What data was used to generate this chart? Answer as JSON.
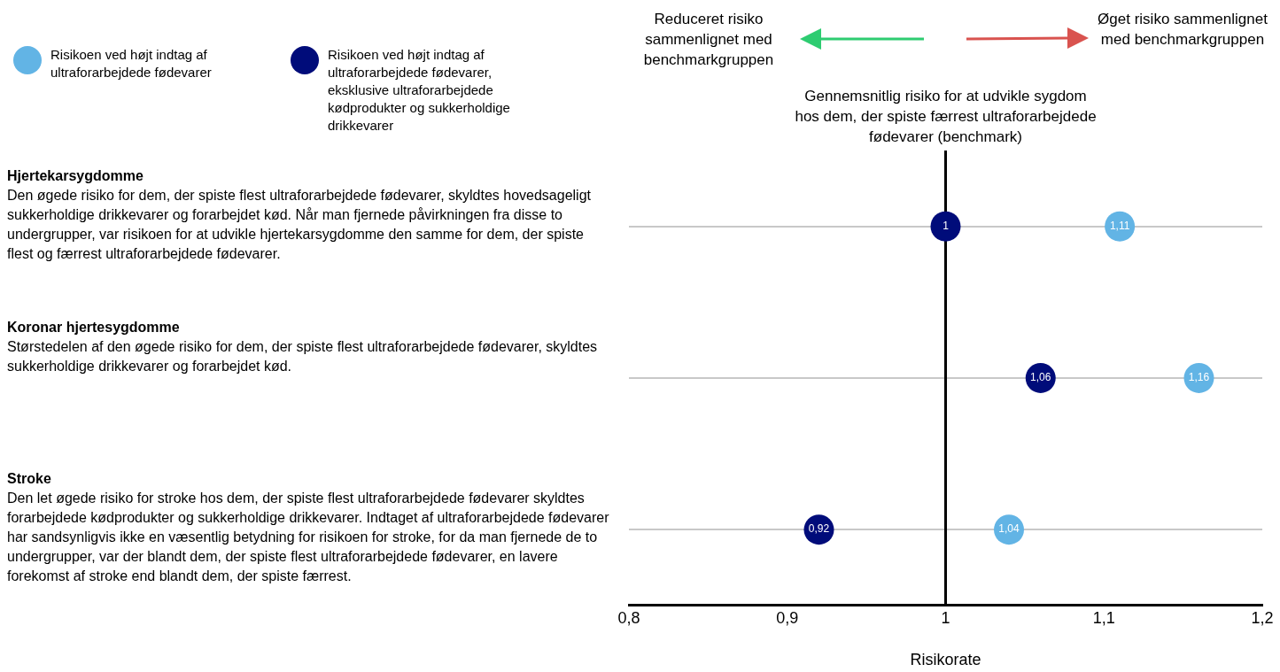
{
  "chart_data": {
    "type": "scatter",
    "orientation": "horizontal",
    "categories": [
      null,
      null,
      null
    ],
    "series": [
      {
        "name": "Risikoen ved højt indtag af ultraforarbejdede fødevarer",
        "color": "#62b4e5",
        "values": [
          1.11,
          1.16,
          1.04
        ],
        "value_labels": [
          "1,11",
          "1,16",
          "1,04"
        ]
      },
      {
        "name": "Risikoen ved højt indtag af ultraforarbejdede fødevarer, eksklusive ultraforarbejdede kødprodukter og sukkerholdige drikkevarer",
        "color": "#000c7a",
        "values": [
          1,
          1.06,
          0.92
        ],
        "value_labels": [
          "1",
          "1,06",
          "0,92"
        ]
      }
    ],
    "xlim": [
      0.8,
      1.2
    ],
    "xticks": [
      {
        "value": 0.8,
        "label": "0,8"
      },
      {
        "value": 0.9,
        "label": "0,9"
      },
      1,
      {
        "value": 1.1,
        "label": "1,1"
      },
      {
        "value": 1.2,
        "label": "1,2"
      }
    ],
    "xlabel": "Risikorate",
    "tick_labels": "x",
    "grid": "y",
    "legend": "top left",
    "marker": "circle",
    "ref_lines": [
      {
        "axis": "x",
        "value": 1,
        "label": "Gennemsnitlig risiko for at udvikle sygdom hos dem, der spiste færrest ultraforarbejdede fødevarer (benchmark)",
        "color": "#000000"
      }
    ],
    "annotations": [
      "Reduceret risiko sammenlignet med benchmarkgruppen",
      "Øget risiko sammenlignet med benchmarkgruppen",
      "Hjertekarsygdomme",
      "Den øgede risiko for dem, der spiste flest ultraforarbejdede fødevarer, skyldtes hovedsageligt sukkerholdige drikkevarer og forarbejdet kød. Når man fjernede påvirkningen fra disse to undergrupper, var risikoen for at udvikle hjertekarsygdomme den samme for dem, der spiste flest og færrest ultraforarbejdede fødevarer.",
      "Koronar hjertesygdomme",
      "Størstedelen af den øgede risiko for dem, der spiste flest ultraforarbejdede fødevarer, skyldtes sukkerholdige drikkevarer og forarbejdet kød.",
      "Stroke",
      "Den let øgede risiko for stroke hos dem, der spiste flest ultraforarbejdede fødevarer skyldtes forarbejdede kødprodukter og sukkerholdige drikkevarer. Indtaget af ultraforarbejdede fødevarer har sandsynligvis ikke en væsentlig betydning for risikoen for stroke, for da man fjernede de to undergrupper, var der blandt dem, der spiste flest ultraforarbejdede fødevarer, en lavere forekomst af stroke end blandt dem, der spiste færrest."
    ]
  }
}
